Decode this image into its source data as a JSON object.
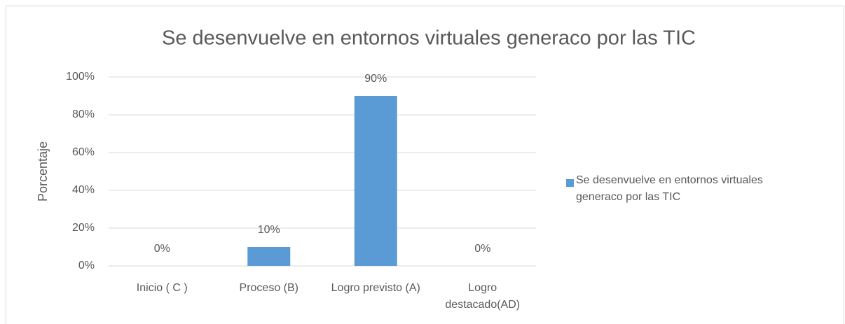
{
  "chart_data": {
    "type": "bar",
    "title": "Se desenvuelve en entornos virtuales generaco por las TIC",
    "y_label": "Porcentaje",
    "categories": [
      "Inicio ( C )",
      "Proceso (B)",
      "Logro previsto (A)",
      "Logro destacado(AD)"
    ],
    "series": [
      {
        "name": "Se desenvuelve en entornos virtuales generaco por las TIC",
        "color": "#5b9bd5",
        "values": [
          0,
          10,
          90,
          0
        ],
        "value_labels": [
          "0%",
          "10%",
          "90%",
          "0%"
        ]
      }
    ],
    "ylim": [
      0,
      100
    ],
    "yticks": [
      {
        "value": 0,
        "label": "0%"
      },
      {
        "value": 20,
        "label": "20%"
      },
      {
        "value": 40,
        "label": "40%"
      },
      {
        "value": 60,
        "label": "60%"
      },
      {
        "value": 80,
        "label": "80%"
      },
      {
        "value": 100,
        "label": "100%"
      }
    ],
    "grid": true,
    "legend": "right"
  }
}
